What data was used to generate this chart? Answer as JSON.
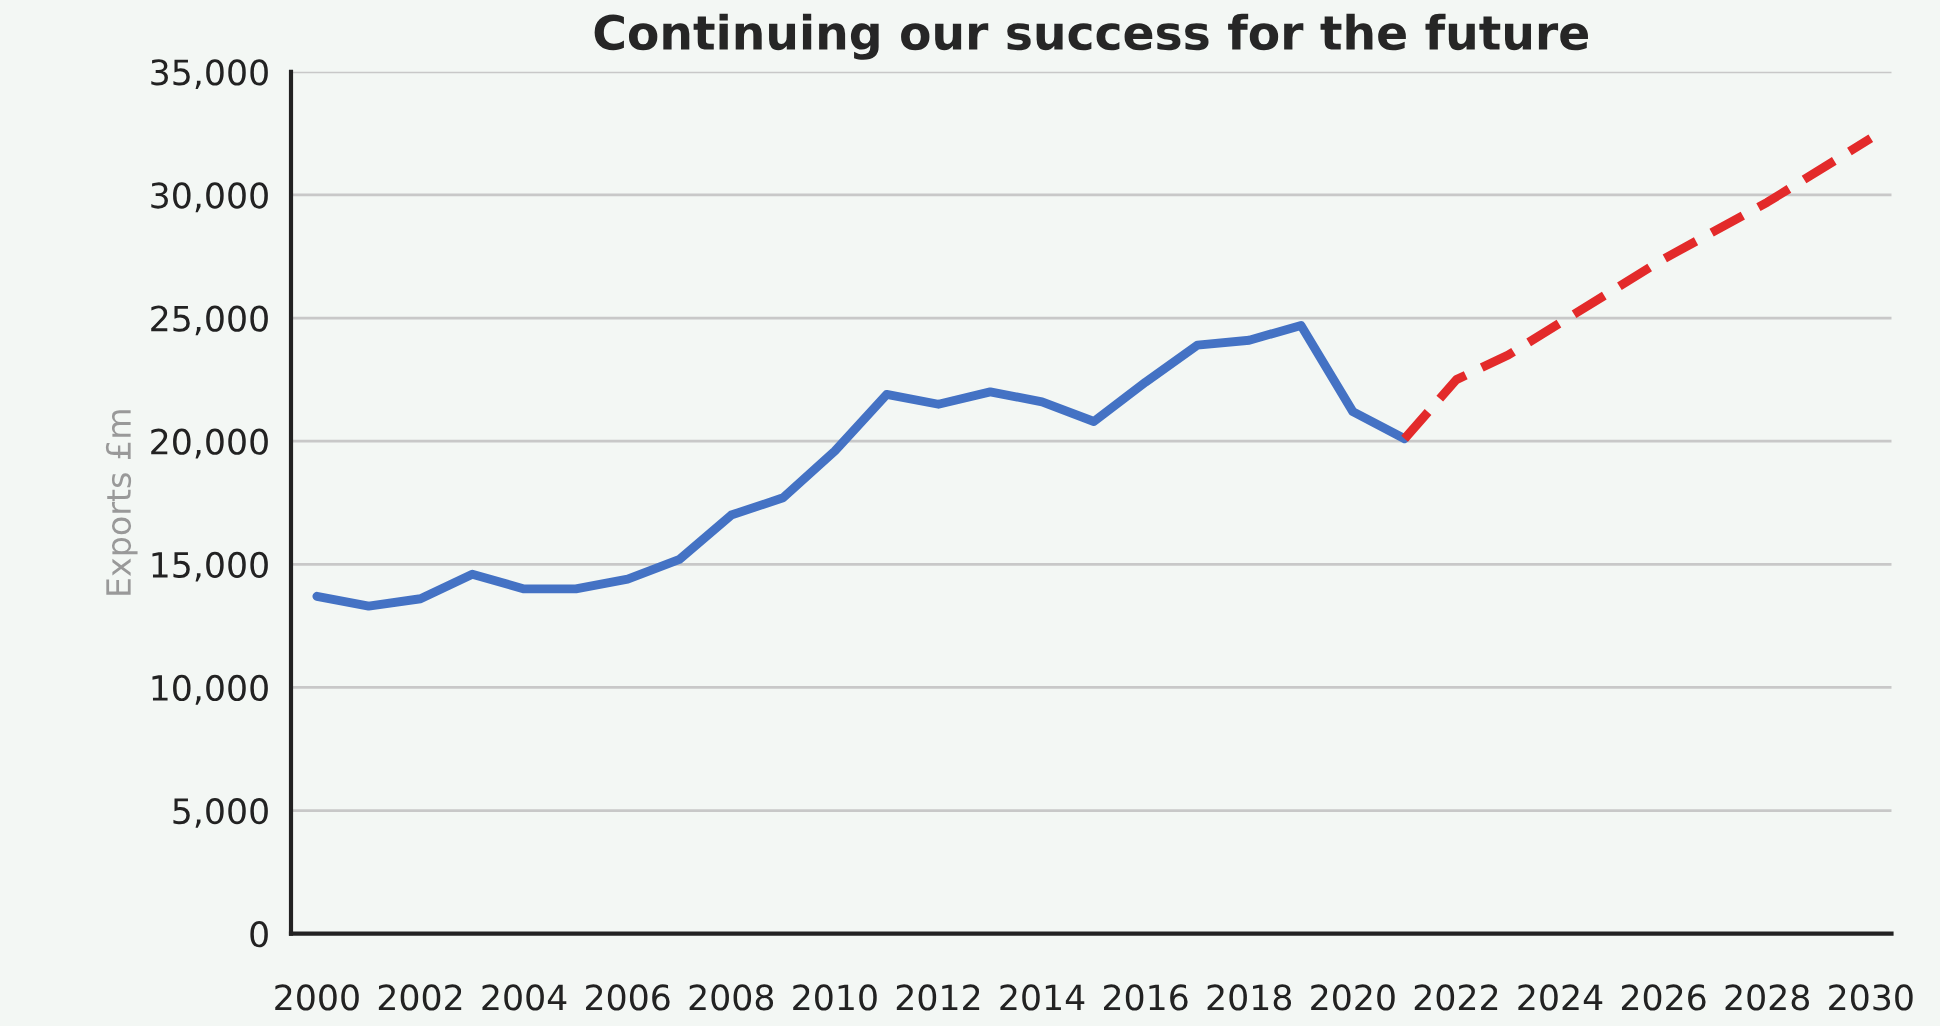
{
  "chart_data": {
    "type": "line",
    "title": "Continuing our success for the future",
    "ylabel": "Exports £m",
    "series": [
      {
        "color": "#4472c4",
        "line_style": "solid",
        "x": [
          2000,
          2001,
          2002,
          2003,
          2004,
          2005,
          2006,
          2007,
          2008,
          2009,
          2010,
          2011,
          2012,
          2013,
          2014,
          2015,
          2016,
          2017,
          2018,
          2019,
          2020,
          2021
        ],
        "values": [
          13700,
          13300,
          13600,
          14600,
          14000,
          14000,
          14400,
          15200,
          17000,
          17700,
          19600,
          21900,
          21500,
          22000,
          21600,
          20800,
          22400,
          23900,
          24100,
          24700,
          21200,
          20100
        ]
      },
      {
        "color": "#e32a2a",
        "line_style": "dashed",
        "x": [
          2021,
          2022,
          2023,
          2026,
          2028,
          2030
        ],
        "values": [
          20100,
          22500,
          23500,
          27400,
          29700,
          32300
        ]
      }
    ],
    "xlim": [
      1999.5,
      2030.4
    ],
    "xticks": [
      2000,
      2002,
      2004,
      2006,
      2008,
      2010,
      2012,
      2014,
      2016,
      2018,
      2020,
      2022,
      2024,
      2026,
      2028,
      2030
    ],
    "ylim": [
      0,
      35000
    ],
    "yticks": [
      {
        "value": 0,
        "label": "0"
      },
      {
        "value": 5000,
        "label": "5,000"
      },
      {
        "value": 10000,
        "label": "10,000"
      },
      {
        "value": 15000,
        "label": "15,000"
      },
      {
        "value": 20000,
        "label": "20,000"
      },
      {
        "value": 25000,
        "label": "25,000"
      },
      {
        "value": 30000,
        "label": "30,000"
      },
      {
        "value": 35000,
        "label": "35,000"
      }
    ],
    "grid": "y",
    "legend": false
  }
}
